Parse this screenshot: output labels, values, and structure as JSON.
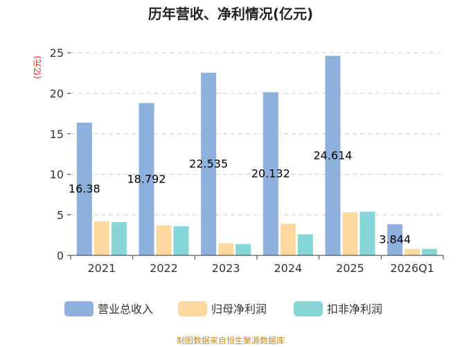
{
  "chart_data": {
    "type": "bar",
    "title": "历年营收、净利情况(亿元)",
    "ylabel": "(亿元)",
    "xlabel": "",
    "categories": [
      "2021",
      "2022",
      "2023",
      "2024",
      "2025",
      "2026Q1"
    ],
    "ylim": [
      0,
      25
    ],
    "yticks": [
      0,
      5,
      10,
      15,
      20,
      25
    ],
    "grid": true,
    "legend_position": "bottom",
    "series": [
      {
        "name": "营业总收入",
        "color": "#8eb0dd",
        "values": [
          16.38,
          18.792,
          22.535,
          20.132,
          24.614,
          3.844
        ]
      },
      {
        "name": "归母净利润",
        "color": "#fdd9a0",
        "values": [
          4.2,
          3.7,
          1.5,
          3.9,
          5.3,
          0.8
        ]
      },
      {
        "name": "扣非净利润",
        "color": "#86d6d8",
        "values": [
          4.1,
          3.6,
          1.4,
          2.6,
          5.4,
          0.8
        ]
      }
    ],
    "data_labels": [
      "16.38",
      "18.792",
      "22.535",
      "20.132",
      "24.614",
      "3.844"
    ]
  },
  "source": "制图数据来自恒生聚源数据库"
}
